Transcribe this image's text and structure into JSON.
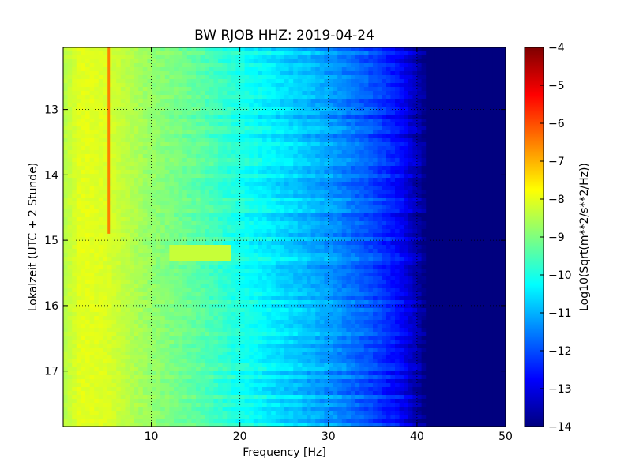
{
  "chart_data": {
    "type": "heatmap",
    "title": "BW RJOB HHZ: 2019-04-24",
    "xlabel": "Frequency [Hz]",
    "ylabel": "Lokalzeit (UTC + 2 Stunde)",
    "xlim": [
      0.05,
      50
    ],
    "ylim": [
      17.85,
      12.05
    ],
    "y_inverted": true,
    "xticks": [
      10,
      20,
      30,
      40,
      50
    ],
    "yticks": [
      13,
      14,
      15,
      16,
      17
    ],
    "grid": true,
    "colormap": "jet",
    "colorbar": {
      "label": "Log10(Sqrt(m**2/s**2/Hz))",
      "range": [
        -14,
        -4
      ],
      "ticks": [
        -4,
        -5,
        -6,
        -7,
        -8,
        -9,
        -10,
        -11,
        -12,
        -13,
        -14
      ]
    },
    "spectral_profile": {
      "frequency_hz": [
        0,
        2,
        5,
        10,
        15,
        20,
        25,
        30,
        35,
        38,
        40,
        41,
        50
      ],
      "log_amplitude": [
        -8.5,
        -8.0,
        -8.1,
        -8.8,
        -9.3,
        -10.0,
        -10.6,
        -11.2,
        -12.0,
        -12.7,
        -13.5,
        -14.0,
        -14.0
      ]
    },
    "features": [
      {
        "kind": "narrowband_line",
        "frequency_hz": 5.2,
        "time_start": 12.05,
        "time_end": 14.9,
        "log_amplitude": -6.5
      },
      {
        "kind": "broadband_patch",
        "frequency_min_hz": 12,
        "frequency_max_hz": 19,
        "time": 15.2,
        "log_amplitude": -8.3
      }
    ]
  },
  "colors": {
    "jet": [
      "#00007f",
      "#0000ff",
      "#007fff",
      "#00ffff",
      "#7fff7f",
      "#ffff00",
      "#ff7f00",
      "#ff0000",
      "#7f0000"
    ],
    "grid": "#000000",
    "frame": "#000000"
  }
}
